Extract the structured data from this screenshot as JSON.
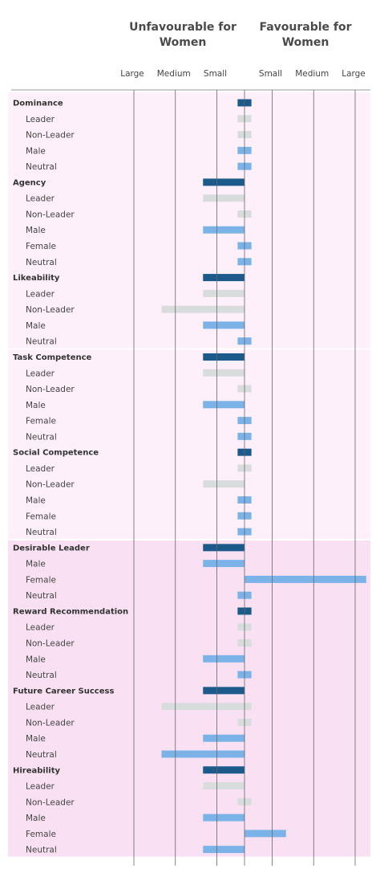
{
  "header": {
    "left_lines": [
      "Unfavourable for",
      "Women"
    ],
    "right_lines": [
      "Favourable for",
      "Women"
    ]
  },
  "colors": {
    "category": "#1b5a8a",
    "light": "#d9dcdd",
    "blue": "#7bb3e8",
    "band_light": "#fdf0fa",
    "band_dark": "#f9e1f3",
    "axis": "#666666"
  },
  "chart_data": {
    "type": "bar",
    "orientation": "horizontal",
    "title": "",
    "x_ticks": [
      {
        "label": "Large",
        "value": -0.8
      },
      {
        "label": "Medium",
        "value": -0.5
      },
      {
        "label": "Small",
        "value": -0.2
      },
      {
        "label": "Small",
        "value": 0.2
      },
      {
        "label": "Medium",
        "value": 0.5
      },
      {
        "label": "Large",
        "value": 0.8
      }
    ],
    "xlim": [
      -0.95,
      0.95
    ],
    "groups": [
      {
        "band": "light",
        "categories": [
          {
            "name": "Dominance",
            "value": 0.05,
            "rows": [
              {
                "label": "Leader",
                "value": 0.05,
                "type": "light"
              },
              {
                "label": "Non-Leader",
                "value": 0.05,
                "type": "light"
              },
              {
                "label": "Male",
                "value": 0.05,
                "type": "blue"
              },
              {
                "label": "Neutral",
                "value": 0.05,
                "type": "blue"
              }
            ]
          },
          {
            "name": "Agency",
            "value": -0.3,
            "rows": [
              {
                "label": "Leader",
                "value": -0.3,
                "type": "light"
              },
              {
                "label": "Non-Leader",
                "value": 0.05,
                "type": "light"
              },
              {
                "label": "Male",
                "value": -0.3,
                "type": "blue"
              },
              {
                "label": "Female",
                "value": 0.05,
                "type": "blue"
              },
              {
                "label": "Neutral",
                "value": 0.05,
                "type": "blue"
              }
            ]
          },
          {
            "name": "Likeability",
            "value": -0.3,
            "rows": [
              {
                "label": "Leader",
                "value": -0.3,
                "type": "light"
              },
              {
                "label": "Non-Leader",
                "value": -0.6,
                "type": "light"
              },
              {
                "label": "Male",
                "value": -0.3,
                "type": "blue"
              },
              {
                "label": "Neutral",
                "value": 0.05,
                "type": "blue"
              }
            ]
          }
        ]
      },
      {
        "band": "light",
        "categories": [
          {
            "name": "Task Competence",
            "value": -0.3,
            "rows": [
              {
                "label": "Leader",
                "value": -0.3,
                "type": "light"
              },
              {
                "label": "Non-Leader",
                "value": 0.05,
                "type": "light"
              },
              {
                "label": "Male",
                "value": -0.3,
                "type": "blue"
              },
              {
                "label": "Female",
                "value": 0.05,
                "type": "blue"
              },
              {
                "label": "Neutral",
                "value": 0.05,
                "type": "blue"
              }
            ]
          },
          {
            "name": "Social Competence",
            "value": 0.05,
            "rows": [
              {
                "label": "Leader",
                "value": 0.05,
                "type": "light"
              },
              {
                "label": "Non-Leader",
                "value": -0.3,
                "type": "light"
              },
              {
                "label": "Male",
                "value": 0.05,
                "type": "blue"
              },
              {
                "label": "Female",
                "value": 0.05,
                "type": "blue"
              },
              {
                "label": "Neutral",
                "value": 0.05,
                "type": "blue"
              }
            ]
          }
        ]
      },
      {
        "band": "dark",
        "categories": [
          {
            "name": "Desirable Leader",
            "value": -0.3,
            "rows": [
              {
                "label": "Male",
                "value": -0.3,
                "type": "blue"
              },
              {
                "label": "Female",
                "value": 0.88,
                "type": "blue"
              },
              {
                "label": "Neutral",
                "value": 0.05,
                "type": "blue"
              }
            ]
          },
          {
            "name": "Reward Recommendation",
            "value": 0.05,
            "rows": [
              {
                "label": "Leader",
                "value": 0.05,
                "type": "light"
              },
              {
                "label": "Non-Leader",
                "value": 0.05,
                "type": "light"
              },
              {
                "label": "Male",
                "value": -0.3,
                "type": "blue"
              },
              {
                "label": "Neutral",
                "value": 0.05,
                "type": "blue"
              }
            ]
          },
          {
            "name": "Future Career Success",
            "value": -0.3,
            "rows": [
              {
                "label": "Leader",
                "value": -0.6,
                "value_end": 0.05,
                "type": "light"
              },
              {
                "label": "Non-Leader",
                "value": 0.05,
                "type": "light"
              },
              {
                "label": "Male",
                "value": -0.3,
                "type": "blue"
              },
              {
                "label": "Neutral",
                "value": -0.6,
                "type": "blue"
              }
            ]
          },
          {
            "name": "Hireability",
            "value": -0.3,
            "rows": [
              {
                "label": "Leader",
                "value": -0.3,
                "type": "light"
              },
              {
                "label": "Non-Leader",
                "value": 0.05,
                "type": "light"
              },
              {
                "label": "Male",
                "value": -0.3,
                "type": "blue"
              },
              {
                "label": "Female",
                "value": 0.3,
                "type": "blue"
              },
              {
                "label": "Neutral",
                "value": -0.3,
                "type": "blue"
              }
            ]
          }
        ]
      }
    ]
  }
}
